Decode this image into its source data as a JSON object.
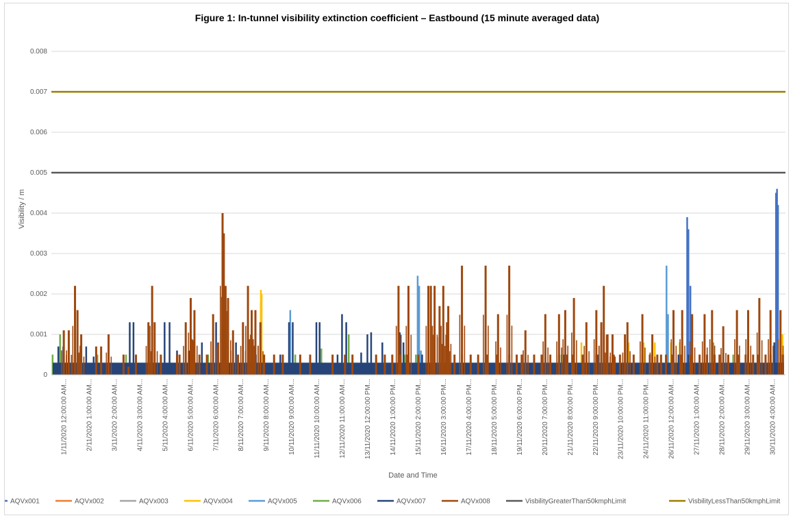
{
  "chart_data": {
    "type": "line",
    "title": "Figure 1: In-tunnel visibility extinction coefficient – Eastbound (15 minute averaged data)",
    "xlabel": "Date and Time",
    "ylabel": "Visibility / m",
    "ylim": [
      0,
      0.008
    ],
    "yticks": [
      "0",
      "0.001",
      "0.002",
      "0.003",
      "0.004",
      "0.005",
      "0.006",
      "0.007",
      "0.008"
    ],
    "grid": "horizontal",
    "legend_position": "bottom",
    "xticks": [
      "1/11/2020 12:00:00 AM...",
      "2/11/2020 1:00:00 AM...",
      "3/11/2020 2:00:00 AM...",
      "4/11/2020 3:00:00 AM...",
      "5/11/2020 4:00:00 AM...",
      "6/11/2020 5:00:00 AM...",
      "7/11/2020 6:00:00 AM...",
      "8/11/2020 7:00:00 AM...",
      "9/11/2020 8:00:00 AM...",
      "10/11/2020 9:00:00 AM...",
      "11/11/2020 10:00:00 AM...",
      "12/11/2020 11:00:00 AM...",
      "13/11/2020 12:00:00 PM...",
      "14/11/2020 1:00:00 PM...",
      "15/11/2020 2:00:00 PM...",
      "16/11/2020 3:00:00 PM...",
      "17/11/2020 4:00:00 PM...",
      "18/11/2020 5:00:00 PM...",
      "19/11/2020 6:00:00 PM...",
      "20/11/2020 7:00:00 PM...",
      "21/11/2020 8:00:00 PM...",
      "22/11/2020 9:00:00 PM...",
      "23/11/2020 10:00:00 PM...",
      "24/11/2020 11:00:00 PM...",
      "26/11/2020 12:00:00 AM...",
      "27/11/2020 1:00:00 AM...",
      "28/11/2020 2:00:00 AM...",
      "29/11/2020 3:00:00 AM...",
      "30/11/2020 4:00:00 AM..."
    ],
    "x_range": [
      0,
      29.5
    ],
    "series": [
      {
        "name": "AQVx001",
        "color": "#4472C4",
        "base": 0,
        "peaks": [
          [
            25.55,
            0.0039
          ],
          [
            25.6,
            0.0036
          ],
          [
            25.68,
            0.0022
          ],
          [
            29.12,
            0.0045
          ],
          [
            29.16,
            0.0046
          ],
          [
            29.2,
            0.0042
          ]
        ]
      },
      {
        "name": "AQVx002",
        "color": "#ED7D31",
        "base": 0,
        "peaks": []
      },
      {
        "name": "AQVx003",
        "color": "#A5A5A5",
        "base": 0,
        "peaks": []
      },
      {
        "name": "AQVx004",
        "color": "#FFC000",
        "base": 0,
        "peaks": [
          [
            8.42,
            0.0021
          ],
          [
            8.45,
            0.002
          ],
          [
            21.3,
            0.0008
          ],
          [
            22.1,
            0.0008
          ],
          [
            23.2,
            0.0008
          ],
          [
            23.8,
            0.0008
          ],
          [
            24.25,
            0.0008
          ],
          [
            24.9,
            0.0008
          ],
          [
            25.25,
            0.0008
          ],
          [
            29.05,
            0.0008
          ],
          [
            29.38,
            0.001
          ]
        ]
      },
      {
        "name": "AQVx005",
        "color": "#5B9BD5",
        "base": 0,
        "peaks": [
          [
            9.6,
            0.0016
          ],
          [
            14.72,
            0.00245
          ],
          [
            14.78,
            0.0022
          ],
          [
            14.85,
            0.0006
          ],
          [
            24.72,
            0.0027
          ],
          [
            24.78,
            0.0015
          ]
        ]
      },
      {
        "name": "AQVx006",
        "color": "#70AD47",
        "base": 0,
        "peaks": [
          [
            0.05,
            0.0005
          ],
          [
            0.35,
            0.001
          ],
          [
            1.1,
            0.0005
          ],
          [
            1.85,
            0.0005
          ],
          [
            2.0,
            0.0005
          ],
          [
            3.0,
            0.0005
          ],
          [
            6.3,
            0.0005
          ],
          [
            7.1,
            0.0005
          ],
          [
            8.42,
            0.0018
          ],
          [
            9.8,
            0.0005
          ],
          [
            10.85,
            0.00065
          ],
          [
            11.95,
            0.001
          ],
          [
            14.2,
            0.0005
          ],
          [
            14.65,
            0.0005
          ],
          [
            20.5,
            0.0005
          ],
          [
            22.35,
            0.0005
          ],
          [
            26.6,
            0.0008
          ],
          [
            27.4,
            0.0005
          ],
          [
            29.35,
            0.0005
          ],
          [
            30.5,
            0.0005
          ],
          [
            31.55,
            0.0005
          ],
          [
            32.15,
            0.0005
          ],
          [
            33.4,
            0.0005
          ]
        ]
      },
      {
        "name": "AQVx007",
        "color": "#264478",
        "base": 0.0003,
        "peaks": [
          [
            0.1,
            0.0002
          ],
          [
            0.28,
            0.0007
          ],
          [
            0.48,
            0.0007
          ],
          [
            1.18,
            0.0002
          ],
          [
            1.4,
            0.0007
          ],
          [
            1.7,
            0.00045
          ],
          [
            1.8,
            0.0002
          ],
          [
            3.15,
            0.0013
          ],
          [
            3.3,
            0.0013
          ],
          [
            4.55,
            0.0013
          ],
          [
            4.75,
            0.0013
          ],
          [
            5.05,
            0.0006
          ],
          [
            5.55,
            0.0006
          ],
          [
            6.05,
            0.0008
          ],
          [
            6.62,
            0.0013
          ],
          [
            7.42,
            0.0008
          ],
          [
            8.22,
            0.0005
          ],
          [
            9.2,
            0.0005
          ],
          [
            9.55,
            0.0013
          ],
          [
            9.7,
            0.0013
          ],
          [
            10.65,
            0.0013
          ],
          [
            10.78,
            0.0013
          ],
          [
            11.5,
            0.0005
          ],
          [
            11.68,
            0.0015
          ],
          [
            11.85,
            0.0013
          ],
          [
            12.45,
            0.00055
          ],
          [
            12.7,
            0.001
          ],
          [
            12.85,
            0.00105
          ],
          [
            13.3,
            0.0008
          ],
          [
            14.0,
            0.00105
          ],
          [
            14.15,
            0.0008
          ],
          [
            14.9,
            0.0005
          ],
          [
            20.6,
            0.0005
          ],
          [
            21.95,
            0.0005
          ],
          [
            25.2,
            0.0005
          ],
          [
            25.6,
            0.0005
          ],
          [
            28.0,
            0.0008
          ],
          [
            29.05,
            0.0008
          ],
          [
            30.1,
            0.0005
          ],
          [
            30.65,
            0.0005
          ],
          [
            31.0,
            0.001
          ],
          [
            31.3,
            0.0005
          ],
          [
            32.1,
            0.0005
          ],
          [
            32.95,
            0.0005
          ],
          [
            33.8,
            0.0005
          ]
        ]
      },
      {
        "name": "AQVx008",
        "color": "#9E480E",
        "base": 0,
        "peaks": [
          [
            0.5,
            0.0011
          ],
          [
            0.7,
            0.0011
          ],
          [
            0.95,
            0.0022
          ],
          [
            1.05,
            0.0016
          ],
          [
            1.2,
            0.001
          ],
          [
            1.8,
            0.0007
          ],
          [
            2.0,
            0.0007
          ],
          [
            2.3,
            0.001
          ],
          [
            2.9,
            0.0005
          ],
          [
            3.1,
            0.0002
          ],
          [
            3.4,
            0.0005
          ],
          [
            3.9,
            0.0013
          ],
          [
            4.05,
            0.0022
          ],
          [
            4.15,
            0.0013
          ],
          [
            4.4,
            0.0005
          ],
          [
            5.05,
            0.0005
          ],
          [
            5.15,
            0.0005
          ],
          [
            5.4,
            0.0013
          ],
          [
            5.6,
            0.0019
          ],
          [
            5.75,
            0.0016
          ],
          [
            5.95,
            0.0005
          ],
          [
            6.25,
            0.0005
          ],
          [
            6.5,
            0.0015
          ],
          [
            6.7,
            0.0008
          ],
          [
            6.88,
            0.004
          ],
          [
            6.93,
            0.0035
          ],
          [
            7.0,
            0.0022
          ],
          [
            7.1,
            0.0019
          ],
          [
            7.3,
            0.0011
          ],
          [
            7.5,
            0.0005
          ],
          [
            7.7,
            0.0013
          ],
          [
            7.9,
            0.0022
          ],
          [
            8.05,
            0.0016
          ],
          [
            8.2,
            0.0016
          ],
          [
            8.4,
            0.0013
          ],
          [
            8.55,
            0.0005
          ],
          [
            8.95,
            0.0005
          ],
          [
            9.3,
            0.0005
          ],
          [
            10.0,
            0.0005
          ],
          [
            10.4,
            0.0005
          ],
          [
            11.3,
            0.0005
          ],
          [
            11.8,
            0.0005
          ],
          [
            12.1,
            0.0005
          ],
          [
            13.05,
            0.0005
          ],
          [
            13.4,
            0.0005
          ],
          [
            13.7,
            0.0005
          ],
          [
            14.0,
            0.0005
          ],
          [
            14.3,
            0.0005
          ],
          [
            14.75,
            0.0005
          ],
          [
            15.15,
            0.0022
          ],
          [
            15.4,
            0.0022
          ],
          [
            15.6,
            0.0017
          ],
          [
            15.75,
            0.0022
          ],
          [
            15.9,
            0.0013
          ],
          [
            16.2,
            0.0005
          ],
          [
            16.5,
            0.0005
          ],
          [
            16.85,
            0.0005
          ],
          [
            17.15,
            0.0005
          ],
          [
            17.5,
            0.0005
          ],
          [
            17.9,
            0.0005
          ],
          [
            18.4,
            0.0005
          ],
          [
            18.7,
            0.0005
          ],
          [
            18.9,
            0.0005
          ],
          [
            19.4,
            0.0005
          ],
          [
            19.7,
            0.0005
          ],
          [
            20.05,
            0.0005
          ],
          [
            20.4,
            0.0005
          ],
          [
            20.7,
            0.0005
          ],
          [
            20.95,
            0.0005
          ],
          [
            21.35,
            0.0005
          ],
          [
            21.9,
            0.0005
          ],
          [
            22.1,
            0.0013
          ],
          [
            22.35,
            0.001
          ],
          [
            22.6,
            0.0005
          ],
          [
            22.85,
            0.0005
          ],
          [
            23.15,
            0.0013
          ],
          [
            23.4,
            0.0005
          ],
          [
            23.75,
            0.0005
          ],
          [
            24.05,
            0.0005
          ],
          [
            24.35,
            0.0005
          ],
          [
            24.7,
            0.0005
          ],
          [
            24.95,
            0.0005
          ],
          [
            25.3,
            0.0005
          ],
          [
            25.7,
            0.0005
          ],
          [
            26.05,
            0.0005
          ],
          [
            26.35,
            0.0005
          ],
          [
            26.65,
            0.0005
          ],
          [
            26.85,
            0.0005
          ],
          [
            27.2,
            0.0005
          ],
          [
            27.6,
            0.0005
          ],
          [
            27.9,
            0.0005
          ],
          [
            28.2,
            0.0005
          ],
          [
            28.4,
            0.0005
          ],
          [
            28.7,
            0.0005
          ],
          [
            28.9,
            0.0005
          ],
          [
            29.4,
            0.0005
          ]
        ],
        "daily_peaks": [
          [
            13.95,
            0.0022
          ],
          [
            14.35,
            0.0022
          ],
          [
            15.25,
            0.0022
          ],
          [
            15.95,
            0.0017
          ],
          [
            16.5,
            0.0027
          ],
          [
            17.45,
            0.0027
          ],
          [
            17.95,
            0.0015
          ],
          [
            18.4,
            0.0027
          ],
          [
            19.05,
            0.0011
          ],
          [
            19.85,
            0.0015
          ],
          [
            20.4,
            0.0015
          ],
          [
            20.65,
            0.0016
          ],
          [
            21.0,
            0.0019
          ],
          [
            21.5,
            0.0013
          ],
          [
            21.9,
            0.0016
          ],
          [
            22.2,
            0.0022
          ],
          [
            22.55,
            0.001
          ],
          [
            23.05,
            0.001
          ],
          [
            23.75,
            0.0015
          ],
          [
            24.15,
            0.001
          ],
          [
            24.5,
            0.0005
          ],
          [
            25.0,
            0.0016
          ],
          [
            25.35,
            0.0016
          ],
          [
            25.75,
            0.0015
          ],
          [
            26.25,
            0.0015
          ],
          [
            26.55,
            0.0016
          ],
          [
            27.0,
            0.0012
          ],
          [
            27.55,
            0.0016
          ],
          [
            28.0,
            0.0016
          ],
          [
            28.45,
            0.0019
          ],
          [
            28.9,
            0.0016
          ],
          [
            29.3,
            0.0016
          ]
        ]
      },
      {
        "name": "VisbilityGreaterThan50kmphLimit",
        "color": "#595959",
        "constant": 0.005
      },
      {
        "name": "VisbilityLessThan50kmphLimit",
        "color": "#9C7C00",
        "constant": 0.007
      }
    ]
  }
}
